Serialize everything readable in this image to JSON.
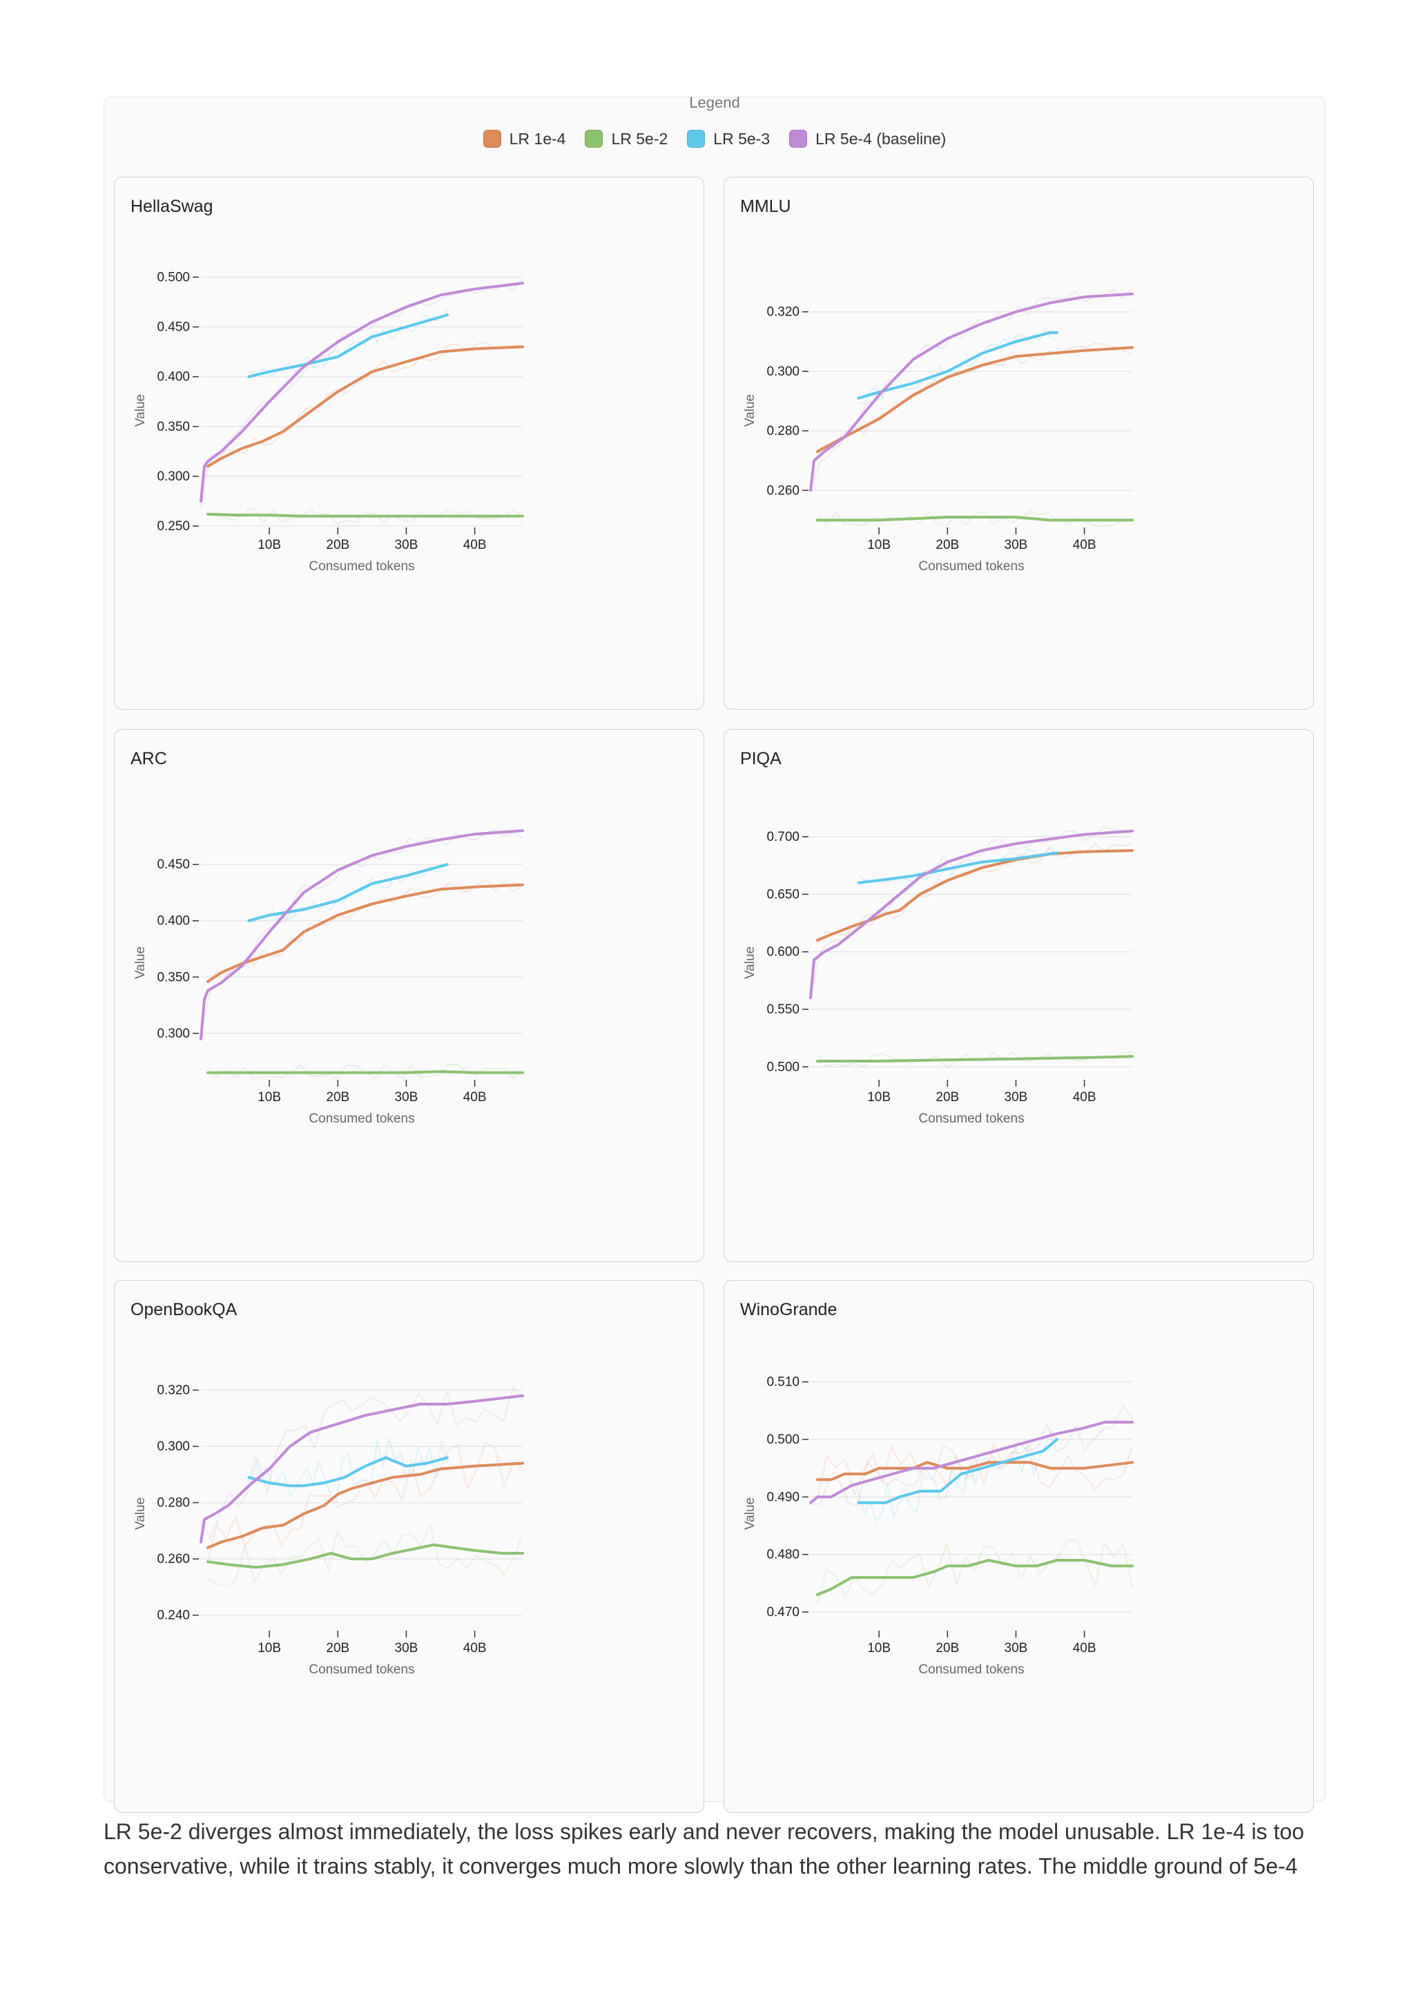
{
  "legend": {
    "title": "Legend",
    "items": [
      {
        "label": "LR 1e-4",
        "color": "#de8a5a"
      },
      {
        "label": "LR 5e-2",
        "color": "#8cc170"
      },
      {
        "label": "LR 5e-3",
        "color": "#5bc8ec"
      },
      {
        "label": "LR 5e-4 (baseline)",
        "color": "#c08ad6"
      }
    ]
  },
  "caption": "LR 5e-2 diverges almost immediately, the loss spikes early and never recovers, making the model unusable. LR 1e-4 is too conservative, while it trains stably, it converges much more slowly than the other learning rates. The middle ground of 5e-4",
  "chart_data": [
    {
      "type": "line",
      "title": "HellaSwag",
      "xlabel": "Consumed tokens",
      "ylabel": "Value",
      "xlim": [
        0,
        47
      ],
      "ylim": [
        0.25,
        0.51
      ],
      "xticks": [
        10,
        20,
        30,
        40
      ],
      "xtick_labels": [
        "10B",
        "20B",
        "30B",
        "40B"
      ],
      "yticks": [
        0.25,
        0.3,
        0.35,
        0.4,
        0.45,
        0.5
      ],
      "ytick_labels": [
        "0.250",
        "0.300",
        "0.350",
        "0.400",
        "0.450",
        "0.500"
      ],
      "series": [
        {
          "name": "LR 1e-4",
          "x": [
            1,
            3,
            6,
            9,
            12,
            15,
            20,
            25,
            30,
            35,
            40,
            47
          ],
          "y": [
            0.31,
            0.318,
            0.328,
            0.335,
            0.345,
            0.36,
            0.385,
            0.405,
            0.415,
            0.425,
            0.428,
            0.43
          ]
        },
        {
          "name": "LR 5e-2",
          "x": [
            1,
            5,
            10,
            15,
            20,
            25,
            30,
            35,
            40,
            47
          ],
          "y": [
            0.262,
            0.261,
            0.261,
            0.26,
            0.26,
            0.26,
            0.26,
            0.26,
            0.26,
            0.26
          ]
        },
        {
          "name": "LR 5e-3",
          "x": [
            7,
            10,
            15,
            20,
            25,
            30,
            36
          ],
          "y": [
            0.4,
            0.405,
            0.412,
            0.42,
            0.44,
            0.45,
            0.462
          ]
        },
        {
          "name": "LR 5e-4 (baseline)",
          "x": [
            0,
            0.5,
            1,
            3,
            6,
            10,
            15,
            20,
            25,
            30,
            35,
            40,
            47
          ],
          "y": [
            0.275,
            0.31,
            0.315,
            0.325,
            0.345,
            0.375,
            0.41,
            0.435,
            0.455,
            0.47,
            0.482,
            0.488,
            0.494
          ]
        }
      ]
    },
    {
      "type": "line",
      "title": "MMLU",
      "xlabel": "Consumed tokens",
      "ylabel": "Value",
      "xlim": [
        0,
        47
      ],
      "ylim": [
        0.248,
        0.335
      ],
      "xticks": [
        10,
        20,
        30,
        40
      ],
      "xtick_labels": [
        "10B",
        "20B",
        "30B",
        "40B"
      ],
      "yticks": [
        0.26,
        0.28,
        0.3,
        0.32
      ],
      "ytick_labels": [
        "0.260",
        "0.280",
        "0.300",
        "0.320"
      ],
      "series": [
        {
          "name": "LR 1e-4",
          "x": [
            1,
            5,
            10,
            15,
            20,
            25,
            30,
            35,
            40,
            47
          ],
          "y": [
            0.273,
            0.278,
            0.284,
            0.292,
            0.298,
            0.302,
            0.305,
            0.306,
            0.307,
            0.308
          ]
        },
        {
          "name": "LR 5e-2",
          "x": [
            1,
            10,
            20,
            25,
            30,
            35,
            40,
            47
          ],
          "y": [
            0.25,
            0.25,
            0.251,
            0.251,
            0.251,
            0.25,
            0.25,
            0.25
          ]
        },
        {
          "name": "LR 5e-3",
          "x": [
            7,
            10,
            15,
            20,
            25,
            30,
            35,
            36
          ],
          "y": [
            0.291,
            0.293,
            0.296,
            0.3,
            0.306,
            0.31,
            0.313,
            0.313
          ]
        },
        {
          "name": "LR 5e-4 (baseline)",
          "x": [
            0,
            0.5,
            2,
            5,
            10,
            15,
            20,
            25,
            30,
            35,
            40,
            47
          ],
          "y": [
            0.26,
            0.27,
            0.273,
            0.278,
            0.292,
            0.304,
            0.311,
            0.316,
            0.32,
            0.323,
            0.325,
            0.326
          ]
        }
      ]
    },
    {
      "type": "line",
      "title": "ARC",
      "xlabel": "Consumed tokens",
      "ylabel": "Value",
      "xlim": [
        0,
        47
      ],
      "ylim": [
        0.26,
        0.49
      ],
      "xticks": [
        10,
        20,
        30,
        40
      ],
      "xtick_labels": [
        "10B",
        "20B",
        "30B",
        "40B"
      ],
      "yticks": [
        0.3,
        0.35,
        0.4,
        0.45
      ],
      "ytick_labels": [
        "0.300",
        "0.350",
        "0.400",
        "0.450"
      ],
      "series": [
        {
          "name": "LR 1e-4",
          "x": [
            1,
            3,
            6,
            9,
            12,
            15,
            20,
            25,
            30,
            35,
            40,
            47
          ],
          "y": [
            0.346,
            0.354,
            0.362,
            0.368,
            0.374,
            0.39,
            0.405,
            0.415,
            0.422,
            0.428,
            0.43,
            0.432
          ]
        },
        {
          "name": "LR 5e-2",
          "x": [
            1,
            10,
            20,
            30,
            35,
            40,
            47
          ],
          "y": [
            0.265,
            0.265,
            0.265,
            0.265,
            0.266,
            0.265,
            0.265
          ]
        },
        {
          "name": "LR 5e-3",
          "x": [
            7,
            10,
            15,
            20,
            25,
            30,
            36
          ],
          "y": [
            0.4,
            0.405,
            0.41,
            0.418,
            0.433,
            0.44,
            0.45
          ]
        },
        {
          "name": "LR 5e-4 (baseline)",
          "x": [
            0,
            0.5,
            1,
            3,
            6,
            10,
            15,
            20,
            25,
            30,
            35,
            40,
            47
          ],
          "y": [
            0.295,
            0.33,
            0.338,
            0.345,
            0.36,
            0.39,
            0.425,
            0.445,
            0.458,
            0.466,
            0.472,
            0.477,
            0.48
          ]
        }
      ]
    },
    {
      "type": "line",
      "title": "PIQA",
      "xlabel": "Consumed tokens",
      "ylabel": "Value",
      "xlim": [
        0,
        47
      ],
      "ylim": [
        0.49,
        0.715
      ],
      "xticks": [
        10,
        20,
        30,
        40
      ],
      "xtick_labels": [
        "10B",
        "20B",
        "30B",
        "40B"
      ],
      "yticks": [
        0.5,
        0.55,
        0.6,
        0.65,
        0.7
      ],
      "ytick_labels": [
        "0.500",
        "0.550",
        "0.600",
        "0.650",
        "0.700"
      ],
      "series": [
        {
          "name": "LR 1e-4",
          "x": [
            1,
            3,
            6,
            9,
            11,
            13,
            16,
            20,
            25,
            30,
            35,
            40,
            47
          ],
          "y": [
            0.61,
            0.615,
            0.622,
            0.628,
            0.633,
            0.636,
            0.65,
            0.662,
            0.673,
            0.68,
            0.685,
            0.687,
            0.688
          ]
        },
        {
          "name": "LR 5e-2",
          "x": [
            1,
            10,
            20,
            30,
            40,
            47
          ],
          "y": [
            0.505,
            0.505,
            0.506,
            0.507,
            0.508,
            0.509
          ]
        },
        {
          "name": "LR 5e-3",
          "x": [
            7,
            10,
            15,
            20,
            25,
            30,
            36
          ],
          "y": [
            0.66,
            0.662,
            0.666,
            0.672,
            0.678,
            0.681,
            0.686
          ]
        },
        {
          "name": "LR 5e-4 (baseline)",
          "x": [
            0,
            0.5,
            2,
            4,
            8,
            12,
            16,
            20,
            25,
            30,
            35,
            40,
            47
          ],
          "y": [
            0.56,
            0.593,
            0.6,
            0.606,
            0.625,
            0.645,
            0.665,
            0.678,
            0.688,
            0.694,
            0.698,
            0.702,
            0.705
          ]
        }
      ]
    },
    {
      "type": "line",
      "title": "OpenBookQA",
      "xlabel": "Consumed tokens",
      "ylabel": "Value",
      "xlim": [
        0,
        47
      ],
      "ylim": [
        0.235,
        0.327
      ],
      "xticks": [
        10,
        20,
        30,
        40
      ],
      "xtick_labels": [
        "10B",
        "20B",
        "30B",
        "40B"
      ],
      "yticks": [
        0.24,
        0.26,
        0.28,
        0.3,
        0.32
      ],
      "ytick_labels": [
        "0.240",
        "0.260",
        "0.280",
        "0.300",
        "0.320"
      ],
      "series": [
        {
          "name": "LR 1e-4",
          "x": [
            1,
            3,
            6,
            9,
            12,
            15,
            18,
            20,
            22,
            25,
            28,
            32,
            35,
            40,
            47
          ],
          "y": [
            0.264,
            0.266,
            0.268,
            0.271,
            0.272,
            0.276,
            0.279,
            0.283,
            0.285,
            0.287,
            0.289,
            0.29,
            0.292,
            0.293,
            0.294
          ]
        },
        {
          "name": "LR 5e-2",
          "x": [
            1,
            4,
            8,
            12,
            16,
            19,
            22,
            25,
            28,
            32,
            34,
            37,
            40,
            44,
            47
          ],
          "y": [
            0.259,
            0.258,
            0.257,
            0.258,
            0.26,
            0.262,
            0.26,
            0.26,
            0.262,
            0.264,
            0.265,
            0.264,
            0.263,
            0.262,
            0.262
          ]
        },
        {
          "name": "LR 5e-3",
          "x": [
            7,
            10,
            13,
            15,
            18,
            21,
            24,
            27,
            30,
            33,
            36
          ],
          "y": [
            0.289,
            0.287,
            0.286,
            0.286,
            0.287,
            0.289,
            0.293,
            0.296,
            0.293,
            0.294,
            0.296
          ]
        },
        {
          "name": "LR 5e-4 (baseline)",
          "x": [
            0,
            0.5,
            2,
            4,
            7,
            10,
            13,
            16,
            20,
            24,
            28,
            32,
            36,
            40,
            47
          ],
          "y": [
            0.266,
            0.274,
            0.276,
            0.279,
            0.286,
            0.292,
            0.3,
            0.305,
            0.308,
            0.311,
            0.313,
            0.315,
            0.315,
            0.316,
            0.318
          ]
        }
      ]
    },
    {
      "type": "line",
      "title": "WinoGrande",
      "xlabel": "Consumed tokens",
      "ylabel": "Value",
      "xlim": [
        0,
        47
      ],
      "ylim": [
        0.467,
        0.512
      ],
      "xticks": [
        10,
        20,
        30,
        40
      ],
      "xtick_labels": [
        "10B",
        "20B",
        "30B",
        "40B"
      ],
      "yticks": [
        0.47,
        0.48,
        0.49,
        0.5,
        0.51
      ],
      "ytick_labels": [
        "0.470",
        "0.480",
        "0.490",
        "0.500",
        "0.510"
      ],
      "series": [
        {
          "name": "LR 1e-4",
          "x": [
            1,
            3,
            5,
            8,
            10,
            13,
            15,
            17,
            20,
            23,
            26,
            30,
            32,
            35,
            40,
            47
          ],
          "y": [
            0.493,
            0.493,
            0.494,
            0.494,
            0.495,
            0.495,
            0.495,
            0.496,
            0.495,
            0.495,
            0.496,
            0.496,
            0.496,
            0.495,
            0.495,
            0.496
          ]
        },
        {
          "name": "LR 5e-2",
          "x": [
            1,
            3,
            6,
            9,
            12,
            15,
            18,
            20,
            23,
            26,
            30,
            33,
            36,
            40,
            44,
            47
          ],
          "y": [
            0.473,
            0.474,
            0.476,
            0.476,
            0.476,
            0.476,
            0.477,
            0.478,
            0.478,
            0.479,
            0.478,
            0.478,
            0.479,
            0.479,
            0.478,
            0.478
          ]
        },
        {
          "name": "LR 5e-3",
          "x": [
            7,
            9,
            11,
            13,
            16,
            19,
            22,
            25,
            28,
            31,
            34,
            36
          ],
          "y": [
            0.489,
            0.489,
            0.489,
            0.49,
            0.491,
            0.491,
            0.494,
            0.495,
            0.496,
            0.497,
            0.498,
            0.5
          ]
        },
        {
          "name": "LR 5e-4 (baseline)",
          "x": [
            0,
            1,
            3,
            6,
            9,
            12,
            15,
            18,
            21,
            24,
            27,
            30,
            33,
            36,
            40,
            43,
            47
          ],
          "y": [
            0.489,
            0.49,
            0.49,
            0.492,
            0.493,
            0.494,
            0.495,
            0.495,
            0.496,
            0.497,
            0.498,
            0.499,
            0.5,
            0.501,
            0.502,
            0.503,
            0.503
          ]
        }
      ]
    }
  ]
}
